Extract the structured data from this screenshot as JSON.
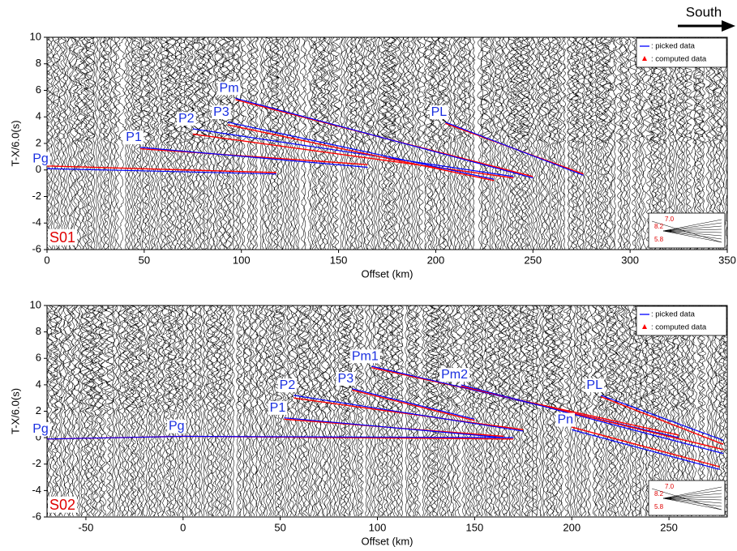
{
  "direction_label": "South",
  "chart_data": [
    {
      "type": "line",
      "panel_label": "S01",
      "xlabel": "Offset (km)",
      "ylabel": "T-X/6.0(s)",
      "xlim": [
        0,
        350
      ],
      "ylim": [
        -6,
        10
      ],
      "xticks": [
        0,
        50,
        100,
        150,
        200,
        250,
        300,
        350
      ],
      "yticks": [
        -6,
        -4,
        -2,
        0,
        2,
        4,
        6,
        8,
        10
      ],
      "legend_entries": [
        ": picked data",
        ": computed data"
      ],
      "picked_color": "#0000ff",
      "computed_color": "#ff0000",
      "inset_labels": [
        "7.0",
        "8.2",
        "5.8"
      ],
      "series": [
        {
          "name": "Pg",
          "x": [
            0,
            118
          ],
          "values": [
            0.1,
            -0.3
          ],
          "computed": [
            0.3,
            -0.2
          ]
        },
        {
          "name": "P1",
          "x": [
            48,
            165
          ],
          "values": [
            1.7,
            0.2
          ],
          "computed": [
            1.6,
            0.4
          ]
        },
        {
          "name": "P2",
          "x": [
            75,
            240
          ],
          "values": [
            3.1,
            -0.5
          ],
          "computed": [
            2.7,
            -0.6
          ]
        },
        {
          "name": "P3",
          "x": [
            93,
            230
          ],
          "values": [
            3.6,
            -0.7
          ],
          "computed": [
            3.4,
            -0.8
          ]
        },
        {
          "name": "Pm",
          "x": [
            97,
            250
          ],
          "values": [
            5.4,
            -0.6
          ],
          "computed": [
            5.3,
            -0.5
          ]
        },
        {
          "name": "PL",
          "x": [
            205,
            276
          ],
          "values": [
            3.6,
            -0.4
          ],
          "computed": [
            3.5,
            -0.3
          ]
        }
      ]
    },
    {
      "type": "line",
      "panel_label": "S02",
      "xlabel": "Offset (km)",
      "ylabel": "T-X/6.0(s)",
      "xlim": [
        -70,
        280
      ],
      "ylim": [
        -6,
        10
      ],
      "xticks": [
        -50,
        0,
        50,
        100,
        150,
        200,
        250
      ],
      "yticks": [
        -6,
        -4,
        -2,
        0,
        2,
        4,
        6,
        8,
        10
      ],
      "legend_entries": [
        ": picked data",
        ": computed data"
      ],
      "picked_color": "#0000ff",
      "computed_color": "#ff0000",
      "inset_labels": [
        "7.0",
        "8.2",
        "5.8"
      ],
      "series": [
        {
          "name": "Pg",
          "x": [
            -70,
            0
          ],
          "values": [
            -0.1,
            0.1
          ],
          "computed": [
            -0.1,
            0.1
          ]
        },
        {
          "name": "Pg",
          "x": [
            0,
            170
          ],
          "values": [
            0.1,
            0.0
          ],
          "computed": [
            0.1,
            -0.1
          ]
        },
        {
          "name": "P1",
          "x": [
            52,
            165
          ],
          "values": [
            1.5,
            0.0
          ],
          "computed": [
            1.4,
            0.1
          ]
        },
        {
          "name": "P2",
          "x": [
            57,
            175
          ],
          "values": [
            3.2,
            0.5
          ],
          "computed": [
            3.0,
            0.6
          ]
        },
        {
          "name": "P3",
          "x": [
            87,
            150
          ],
          "values": [
            3.7,
            1.4
          ],
          "computed": [
            3.6,
            1.3
          ]
        },
        {
          "name": "Pm1",
          "x": [
            97,
            255
          ],
          "values": [
            5.4,
            0.0
          ],
          "computed": [
            5.3,
            0.2
          ]
        },
        {
          "name": "Pm2",
          "x": [
            143,
            278
          ],
          "values": [
            4.0,
            -1.2
          ],
          "computed": [
            3.9,
            -0.9
          ]
        },
        {
          "name": "PL",
          "x": [
            215,
            278
          ],
          "values": [
            3.2,
            -0.2
          ],
          "computed": [
            3.1,
            -0.5
          ]
        },
        {
          "name": "Pn",
          "x": [
            200,
            276
          ],
          "values": [
            0.6,
            -2.4
          ],
          "computed": [
            0.8,
            -2.2
          ]
        }
      ]
    }
  ]
}
